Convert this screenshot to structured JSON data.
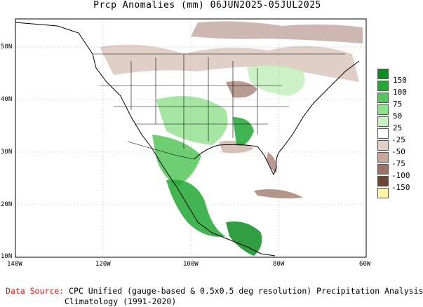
{
  "title": "Prcp Anomalies (mm) 06JUN2025-05JUL2025",
  "x_ticks": [
    "140W",
    "120W",
    "100W",
    "80W",
    "60W"
  ],
  "y_ticks": [
    "50N",
    "40N",
    "30N",
    "20N",
    "10N"
  ],
  "legend": {
    "labels": [
      "150",
      "100",
      "75",
      "50",
      "25",
      "-25",
      "-50",
      "-75",
      "-100",
      "-150"
    ],
    "colors": [
      "#0a8c1e",
      "#21a732",
      "#55c659",
      "#8ee18b",
      "#c6f0c1",
      "#ffffff",
      "#e4cfc5",
      "#c7a898",
      "#9b7263",
      "#6b4637",
      "#fff3a6"
    ]
  },
  "footer": {
    "source_label": "Data Source:",
    "source_text": "CPC Unified (gauge-based & 0.5x0.5 deg resolution) Precipitation Analysis",
    "climatology": "Climatology (1991-2020)"
  }
}
